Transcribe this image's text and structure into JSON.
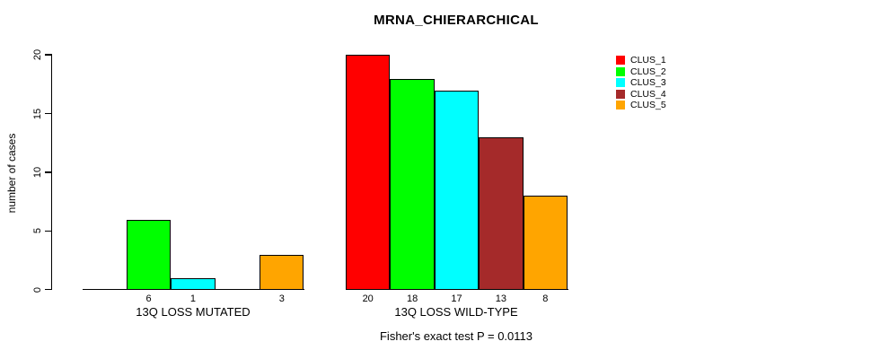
{
  "chart_data": {
    "type": "bar",
    "title": "MRNA_CHIERARCHICAL",
    "ylabel": "number of cases",
    "ylim": [
      0,
      20
    ],
    "yticks": [
      0,
      5,
      10,
      15,
      20
    ],
    "grid": false,
    "legend_position": "top-right",
    "series": [
      {
        "name": "CLUS_1",
        "color": "#ff0000"
      },
      {
        "name": "CLUS_2",
        "color": "#00ff00"
      },
      {
        "name": "CLUS_3",
        "color": "#00ffff"
      },
      {
        "name": "CLUS_4",
        "color": "#a52a2a"
      },
      {
        "name": "CLUS_5",
        "color": "#ffa500"
      }
    ],
    "groups": [
      {
        "label": "13Q LOSS MUTATED",
        "values": [
          0,
          6,
          1,
          0,
          3
        ],
        "bar_labels": [
          "",
          "6",
          "1",
          "",
          "3"
        ]
      },
      {
        "label": "13Q LOSS WILD-TYPE",
        "values": [
          20,
          18,
          17,
          13,
          8
        ],
        "bar_labels": [
          "20",
          "18",
          "17",
          "13",
          "8"
        ]
      }
    ],
    "annotation": "Fisher's exact test P = 0.0113"
  }
}
